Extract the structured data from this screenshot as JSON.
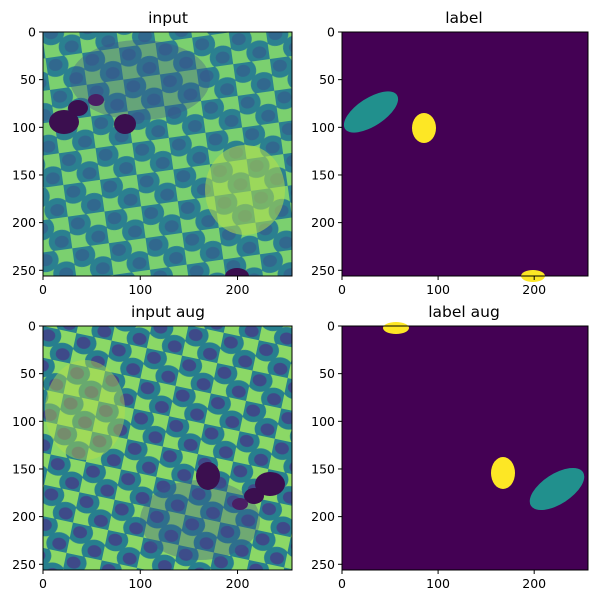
{
  "panels": [
    {
      "title": "input",
      "kind": "image",
      "augmented": false
    },
    {
      "title": "label",
      "kind": "mask",
      "augmented": false
    },
    {
      "title": "input aug",
      "kind": "image",
      "augmented": true
    },
    {
      "title": "label aug",
      "kind": "mask",
      "augmented": true
    }
  ],
  "axis": {
    "xticks": [
      "0",
      "100",
      "200"
    ],
    "yticks": [
      "0",
      "50",
      "100",
      "150",
      "200",
      "250"
    ]
  },
  "colors": {
    "mask_background": "#440154",
    "mask_class_1": "#21908d",
    "mask_class_2": "#fde725",
    "image_cell": "#2c7f8e",
    "image_wall": "#8fd56a",
    "image_bee": "#3b0f4f"
  }
}
